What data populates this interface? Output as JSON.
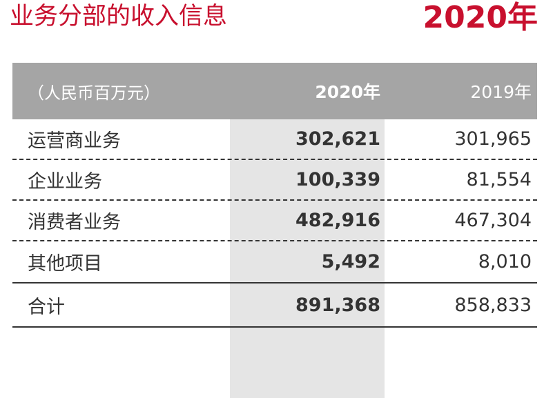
{
  "title": "业务分部的收入信息",
  "year_title": "2020年",
  "table": {
    "header": {
      "unit_label": "（人民币百万元）",
      "col_2020": "2020年",
      "col_2019": "2019年"
    },
    "rows": [
      {
        "label": "运营商业务",
        "v2020": "302,621",
        "v2019": "301,965"
      },
      {
        "label": "企业业务",
        "v2020": "100,339",
        "v2019": "81,554"
      },
      {
        "label": "消费者业务",
        "v2020": "482,916",
        "v2019": "467,304"
      },
      {
        "label": "其他项目",
        "v2020": "5,492",
        "v2019": "8,010"
      }
    ],
    "total": {
      "label": "合计",
      "v2020": "891,368",
      "v2019": "858,833"
    }
  },
  "colors": {
    "accent": "#c8102e",
    "header_bg": "#a5a5a5",
    "highlight_col": "#e5e5e5",
    "text": "#333333"
  }
}
